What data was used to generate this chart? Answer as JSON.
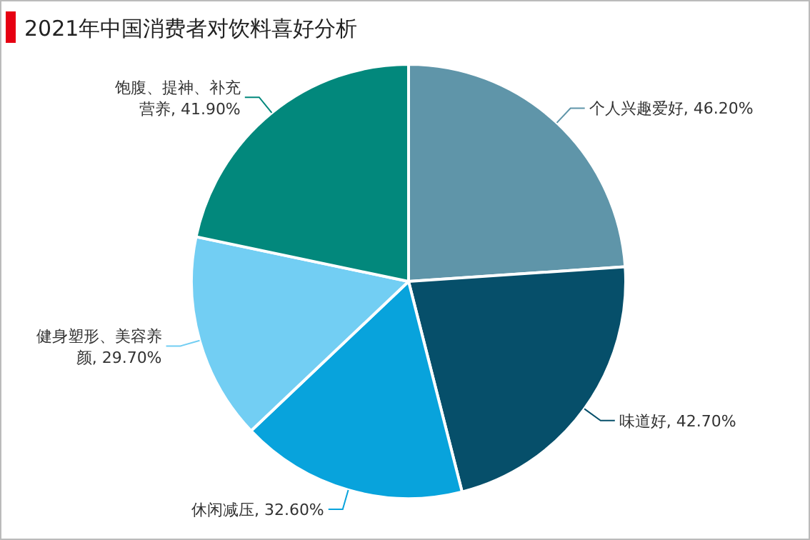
{
  "chart_data": {
    "type": "pie",
    "title": "2021年中国消费者对饮料喜好分析",
    "categories": [
      "个人兴趣爱好",
      "味道好",
      "休闲减压",
      "健身塑形、美容养颜",
      "饱腹、提神、补充营养"
    ],
    "values": [
      46.2,
      42.7,
      32.6,
      29.7,
      41.9
    ],
    "value_labels": [
      "46.20%",
      "42.70%",
      "32.60%",
      "29.70%",
      "41.90%"
    ],
    "colors": [
      "#5f95a9",
      "#064f6a",
      "#08a3dc",
      "#72cef3",
      "#02887c"
    ]
  }
}
